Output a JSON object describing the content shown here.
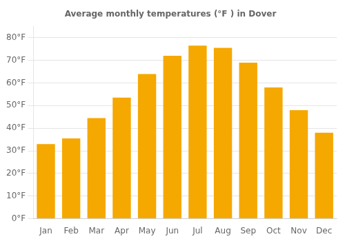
{
  "chart_data": {
    "type": "bar",
    "title": "Average monthly temperatures (°F ) in Dover",
    "categories": [
      "Jan",
      "Feb",
      "Mar",
      "Apr",
      "May",
      "Jun",
      "Jul",
      "Aug",
      "Sep",
      "Oct",
      "Nov",
      "Dec"
    ],
    "values": [
      33,
      35.5,
      44.5,
      53.5,
      64,
      72,
      76.5,
      75.5,
      69,
      58,
      48,
      38
    ],
    "color": "#F5A800",
    "ylim": [
      0,
      85
    ],
    "yticks": [
      {
        "value": 0,
        "label": "0°F"
      },
      {
        "value": 10,
        "label": "10°F"
      },
      {
        "value": 20,
        "label": "20°F"
      },
      {
        "value": 30,
        "label": "30°F"
      },
      {
        "value": 40,
        "label": "40°F"
      },
      {
        "value": 50,
        "label": "50°F"
      },
      {
        "value": 60,
        "label": "60°F"
      },
      {
        "value": 70,
        "label": "70°F"
      },
      {
        "value": 80,
        "label": "80°F"
      }
    ],
    "grid": true
  }
}
